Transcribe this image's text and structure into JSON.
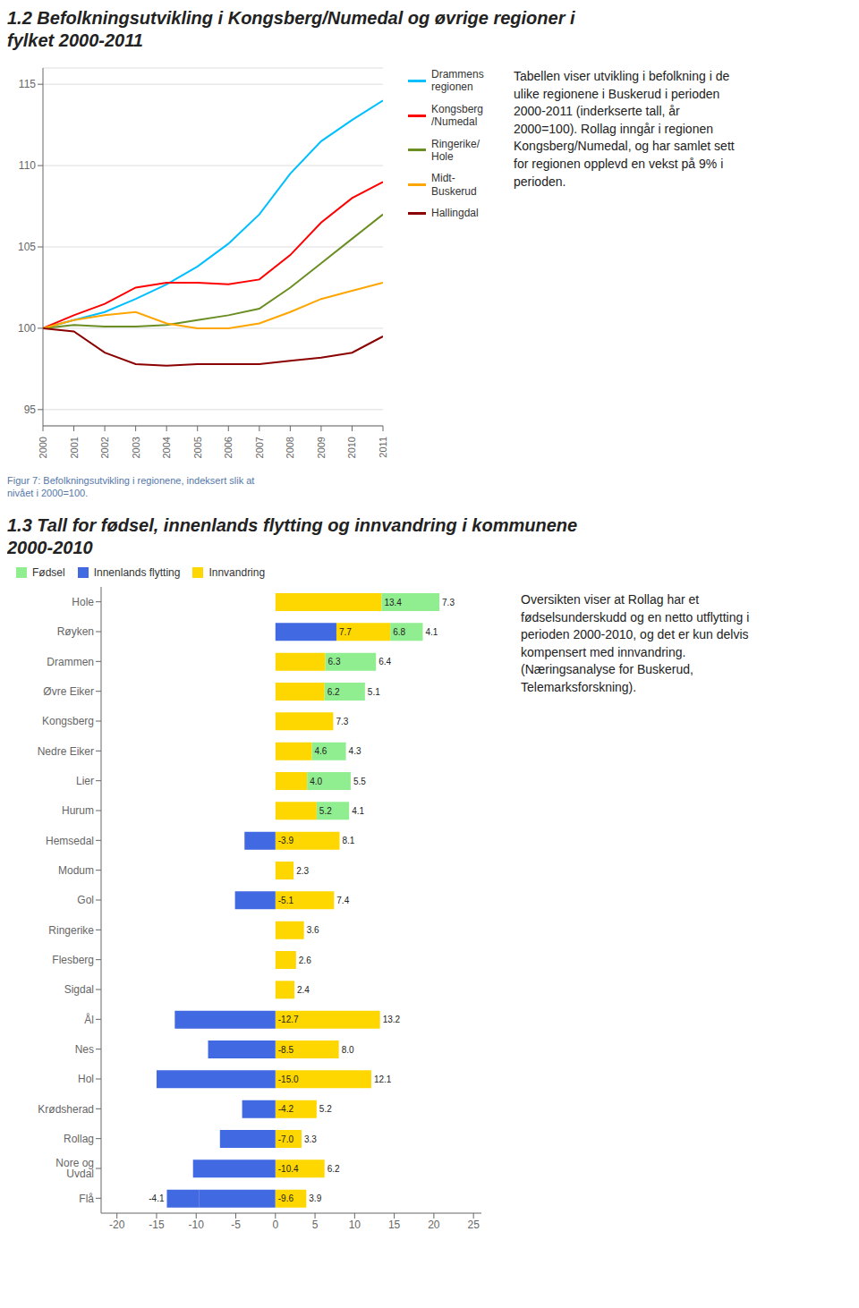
{
  "chart_data": [
    {
      "type": "line",
      "title": "1.2 Befolkningsutvikling i Kongsberg/Numedal og øvrige regioner i\nfylket 2000-2011",
      "x": [
        2000,
        2001,
        2002,
        2003,
        2004,
        2005,
        2006,
        2007,
        2008,
        2009,
        2010,
        2011
      ],
      "xlim": [
        2000,
        2011
      ],
      "xticks": [
        2000,
        2001,
        2002,
        2003,
        2004,
        2005,
        2006,
        2007,
        2008,
        2009,
        2010,
        2011
      ],
      "ylim": [
        94,
        116
      ],
      "yticks": [
        95,
        100,
        105,
        110,
        115
      ],
      "grid": true,
      "legend": "right",
      "series": [
        {
          "name": "Drammens\nregionen",
          "color": "#00BFFF",
          "values": [
            100,
            100.5,
            101.0,
            101.8,
            102.7,
            103.8,
            105.2,
            107.0,
            109.5,
            111.5,
            112.8,
            114.0
          ]
        },
        {
          "name": "Kongsberg\n/Numedal",
          "color": "#FF0000",
          "values": [
            100,
            100.8,
            101.5,
            102.5,
            102.8,
            102.8,
            102.7,
            103.0,
            104.5,
            106.5,
            108.0,
            109.0
          ]
        },
        {
          "name": "Ringerike/\nHole",
          "color": "#6B8E23",
          "values": [
            100,
            100.2,
            100.1,
            100.1,
            100.2,
            100.5,
            100.8,
            101.2,
            102.5,
            104.0,
            105.5,
            107.0
          ]
        },
        {
          "name": "Midt-\nBuskerud",
          "color": "#FFA500",
          "values": [
            100,
            100.5,
            100.8,
            101.0,
            100.3,
            100.0,
            100.0,
            100.3,
            101.0,
            101.8,
            102.3,
            102.8
          ]
        },
        {
          "name": "Hallingdal",
          "color": "#8B0000",
          "values": [
            100,
            99.8,
            98.5,
            97.8,
            97.7,
            97.8,
            97.8,
            97.8,
            98.0,
            98.2,
            98.5,
            99.5
          ]
        }
      ],
      "annotations": [
        "Tabellen viser utvikling i befolkning i de\nulike regionene i Buskerud i perioden\n2000-2011 (inderkserte tall, år\n2000=100). Rollag inngår i regionen\nKongsberg/Numedal, og har samlet sett\nfor regionen opplevd en vekst på 9% i\nperioden.",
        "Figur 7: Befolkningsutvikling i regionene, indeksert slik at\nnivået i 2000=100."
      ]
    },
    {
      "type": "bar",
      "orientation": "horizontal",
      "stacked": true,
      "data_labels": true,
      "grid": false,
      "legend": "upper left",
      "title": "1.3 Tall for fødsel, innenlands flytting og innvandring i kommunene\n2000-2010",
      "categories": [
        "Hole",
        "Røyken",
        "Drammen",
        "Øvre Eiker",
        "Kongsberg",
        "Nedre Eiker",
        "Lier",
        "Hurum",
        "Hemsedal",
        "Modum",
        "Gol",
        "Ringerike",
        "Flesberg",
        "Sigdal",
        "Ål",
        "Nes",
        "Hol",
        "Krødsherad",
        "Rollag",
        "Nore og Uvdal",
        "Flå"
      ],
      "xlim": [
        -22,
        26
      ],
      "xticks": [
        -20,
        -15,
        -10,
        -5,
        0,
        5,
        10,
        15,
        20,
        25
      ],
      "series": [
        {
          "name": "Fødsel",
          "color": "#90EE90",
          "values": [
            7.3,
            4.1,
            6.4,
            5.1,
            0,
            4.3,
            5.5,
            4.1,
            0,
            0,
            0,
            0,
            0,
            0,
            0,
            0,
            0,
            0,
            0,
            0,
            0
          ]
        },
        {
          "name": "Innenlands flytting",
          "color": "#4169E1",
          "values": [
            0,
            0,
            0,
            0,
            0,
            0,
            0,
            0,
            -3.9,
            0,
            -5.1,
            0,
            0,
            0,
            -12.7,
            -8.5,
            -15.0,
            -4.2,
            -7.0,
            -10.4,
            -4.1
          ],
          "value_labels": [
            null,
            null,
            null,
            null,
            null,
            null,
            null,
            null,
            "-3.9",
            null,
            "-5.1",
            null,
            null,
            null,
            "-12.7",
            "-8.5",
            "-15.0",
            "-4.2",
            "-7.0",
            "-10.4",
            "-4.1"
          ]
        },
        {
          "name": "Innvandring",
          "color": "#FFD700",
          "values": [
            13.4,
            6.8,
            6.3,
            6.2,
            7.3,
            4.6,
            4.0,
            5.2,
            8.1,
            2.3,
            7.4,
            3.6,
            2.6,
            2.4,
            13.2,
            8.0,
            12.1,
            5.2,
            3.3,
            6.2,
            3.9
          ],
          "value_labels": [
            "13.4",
            "6.8",
            "6.3",
            "6.2",
            "7.3",
            "4.6",
            "4.0",
            "5.2",
            "8.1",
            "2.3",
            "7.4",
            "3.6",
            "2.6",
            "2.4",
            "13.2",
            "8.0",
            "12.1",
            "5.2",
            "3.3",
            "6.2",
            "3.9"
          ]
        },
        {
          "name": "Innenlands flytting",
          "color": "#4169E1",
          "values": [
            0,
            7.7,
            0,
            0,
            0,
            0,
            0,
            0,
            0,
            0,
            0,
            0,
            0,
            0,
            0,
            0,
            0,
            0,
            0,
            0,
            -9.6
          ]
        }
      ],
      "annotations": [
        "Oversikten viser at Rollag har et\nfødselsunderskudd og en netto utflytting i\nperioden 2000-2010, og det er kun delvis\nkompensert med innvandring.\n(Næringsanalyse for Buskerud,\nTelemarksforskning)."
      ]
    }
  ]
}
